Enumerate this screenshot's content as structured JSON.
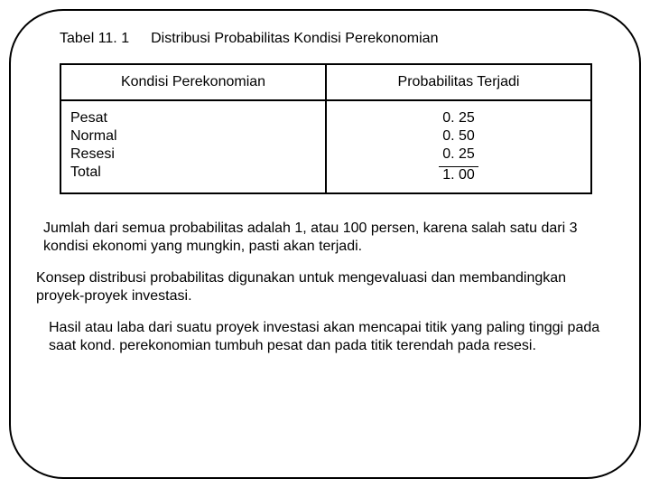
{
  "title": {
    "table_no": "Tabel 11. 1",
    "table_caption": "Distribusi Probabilitas Kondisi Perekonomian"
  },
  "table": {
    "headers": {
      "kondisi": "Kondisi Perekonomian",
      "prob": "Probabilitas Terjadi"
    },
    "rows": [
      {
        "kondisi": "Pesat",
        "prob": "0. 25"
      },
      {
        "kondisi": "Normal",
        "prob": "0. 50"
      },
      {
        "kondisi": "Resesi",
        "prob": "0. 25"
      },
      {
        "kondisi": "Total",
        "prob": "1. 00"
      }
    ]
  },
  "paragraphs": {
    "p1": "Jumlah dari semua probabilitas adalah 1, atau 100 persen, karena salah satu dari 3 kondisi ekonomi yang mungkin, pasti akan terjadi.",
    "p2": "Konsep distribusi probabilitas digunakan untuk mengevaluasi dan membandingkan proyek-proyek investasi.",
    "p3": "Hasil atau laba dari  suatu proyek investasi akan mencapai titik yang paling tinggi pada saat kond. perekonomian tumbuh pesat dan pada titik terendah pada resesi."
  },
  "colors": {
    "text": "#000000",
    "background": "#ffffff",
    "border": "#000000"
  },
  "fonts": {
    "family": "Arial",
    "body_size_pt": 12
  }
}
